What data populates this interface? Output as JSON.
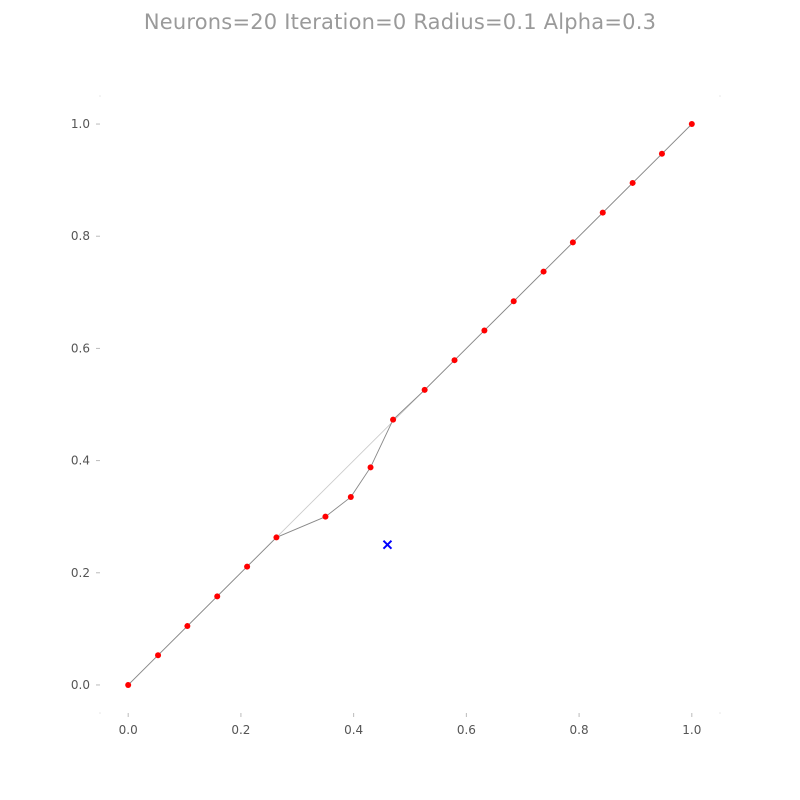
{
  "chart_data": {
    "type": "line",
    "title": "Neurons=20 Iteration=0 Radius=0.1 Alpha=0.3",
    "xlabel": "",
    "ylabel": "",
    "xlim": [
      -0.05,
      1.05
    ],
    "ylim": [
      -0.05,
      1.05
    ],
    "xticks": [
      "0.0",
      "0.2",
      "0.4",
      "0.6",
      "0.8",
      "1.0"
    ],
    "yticks": [
      "0.0",
      "0.2",
      "0.4",
      "0.6",
      "0.8",
      "1.0"
    ],
    "grid": false,
    "legend": "none",
    "series": [
      {
        "marker": "circle",
        "color": "#ff0000",
        "line_color": "#888888",
        "points": [
          [
            0.0,
            0.0
          ],
          [
            0.053,
            0.053
          ],
          [
            0.105,
            0.105
          ],
          [
            0.158,
            0.158
          ],
          [
            0.211,
            0.211
          ],
          [
            0.263,
            0.263
          ],
          [
            0.35,
            0.3
          ],
          [
            0.395,
            0.335
          ],
          [
            0.43,
            0.388
          ],
          [
            0.47,
            0.473
          ],
          [
            0.526,
            0.526
          ],
          [
            0.579,
            0.579
          ],
          [
            0.632,
            0.632
          ],
          [
            0.684,
            0.684
          ],
          [
            0.737,
            0.737
          ],
          [
            0.789,
            0.789
          ],
          [
            0.842,
            0.842
          ],
          [
            0.895,
            0.895
          ],
          [
            0.947,
            0.947
          ],
          [
            1.0,
            1.0
          ]
        ]
      },
      {
        "role": "previous-positions",
        "line_color": "#cccccc",
        "points": [
          [
            0.0,
            0.0
          ],
          [
            0.053,
            0.053
          ],
          [
            0.105,
            0.105
          ],
          [
            0.158,
            0.158
          ],
          [
            0.211,
            0.211
          ],
          [
            0.263,
            0.263
          ],
          [
            0.316,
            0.316
          ],
          [
            0.368,
            0.368
          ],
          [
            0.421,
            0.421
          ],
          [
            0.474,
            0.474
          ],
          [
            0.526,
            0.526
          ],
          [
            0.579,
            0.579
          ],
          [
            0.632,
            0.632
          ],
          [
            0.684,
            0.684
          ],
          [
            0.737,
            0.737
          ],
          [
            0.789,
            0.789
          ],
          [
            0.842,
            0.842
          ],
          [
            0.895,
            0.895
          ],
          [
            0.947,
            0.947
          ],
          [
            1.0,
            1.0
          ]
        ]
      },
      {
        "role": "sample",
        "marker": "x",
        "color": "#0000ff",
        "points": [
          [
            0.46,
            0.25
          ]
        ]
      }
    ]
  }
}
